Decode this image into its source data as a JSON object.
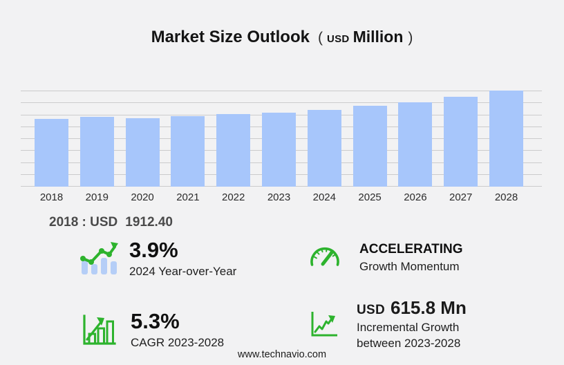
{
  "header": {
    "title": "Market Size Outlook",
    "unit_open": "(",
    "unit_currency": "USD",
    "unit_scale": "Million",
    "unit_close": ")"
  },
  "chart_data": {
    "type": "bar",
    "title": "Market Size Outlook (USD Million)",
    "unit": "USD Million",
    "categories": [
      "2018",
      "2019",
      "2020",
      "2021",
      "2022",
      "2023",
      "2024",
      "2025",
      "2026",
      "2027",
      "2028"
    ],
    "values": [
      1912.4,
      1984.6,
      1939.9,
      1990.6,
      2056.3,
      2101.5,
      2183.5,
      2289.7,
      2393.5,
      2548.8,
      2717.3
    ],
    "ylim": [
      0,
      2724
    ],
    "gridline_count": 9,
    "grid": true,
    "legend": "none",
    "bar_color": "#a7c6fb",
    "annotation": "2018 : USD  1912.40"
  },
  "annotation": {
    "prefix": "2018 : USD",
    "value": "1912.40"
  },
  "stats": {
    "yoy": {
      "value": "3.9%",
      "label": "2024 Year-over-Year",
      "icon": "bars-trend-up-icon"
    },
    "momentum": {
      "value": "ACCELERATING",
      "label": "Growth Momentum",
      "icon": "speedometer-icon"
    },
    "cagr": {
      "value": "5.3%",
      "label": "CAGR 2023-2028",
      "icon": "bar-chart-growth-icon"
    },
    "incremental": {
      "currency": "USD",
      "value": "615.8 Mn",
      "label_line1": "Incremental Growth",
      "label_line2": "between 2023-2028",
      "icon": "line-chart-growth-icon"
    }
  },
  "footer": {
    "url": "www.technavio.com"
  },
  "colors": {
    "background": "#f2f2f3",
    "bar_blue": "#a7c6fb",
    "icon_bar_blue": "#b5cef7",
    "accent_green": "#2db32d",
    "gridline_gray": "#cbcbcc"
  }
}
